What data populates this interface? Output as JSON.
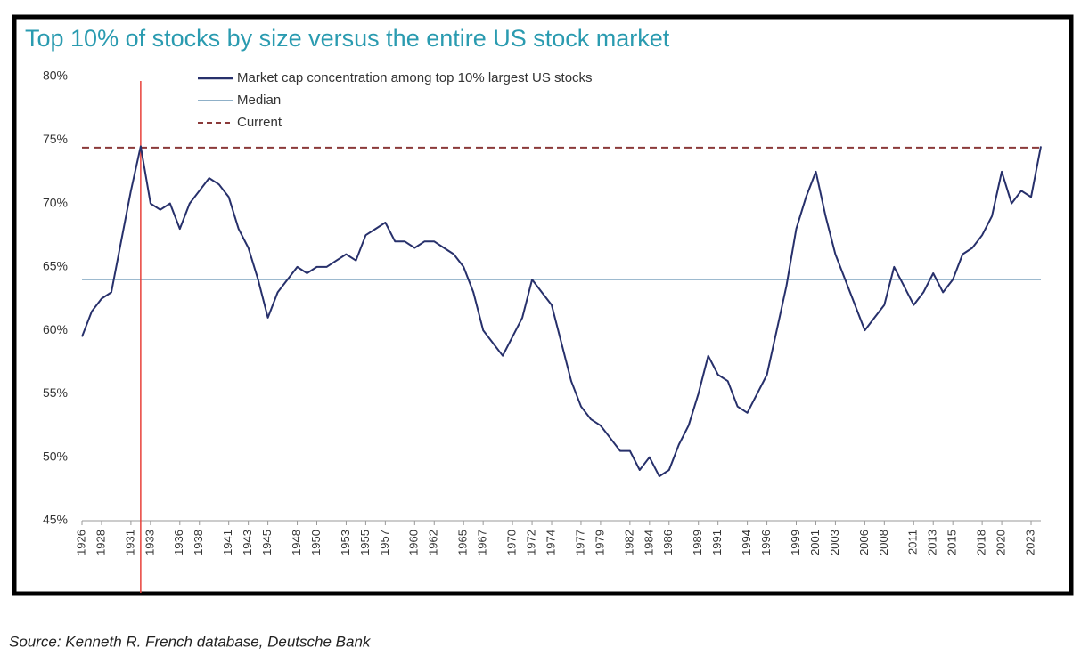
{
  "chart_data": {
    "type": "line",
    "title": "Top 10% of stocks by size versus the entire US stock market",
    "source": "Source: Kenneth R. French database, Deutsche Bank",
    "x": [
      1926,
      1927,
      1928,
      1929,
      1930,
      1931,
      1932,
      1933,
      1934,
      1935,
      1936,
      1937,
      1938,
      1939,
      1940,
      1941,
      1942,
      1943,
      1944,
      1945,
      1946,
      1947,
      1948,
      1949,
      1950,
      1951,
      1952,
      1953,
      1954,
      1955,
      1956,
      1957,
      1958,
      1959,
      1960,
      1961,
      1962,
      1963,
      1964,
      1965,
      1966,
      1967,
      1968,
      1969,
      1970,
      1971,
      1972,
      1973,
      1974,
      1975,
      1976,
      1977,
      1978,
      1979,
      1980,
      1981,
      1982,
      1983,
      1984,
      1985,
      1986,
      1987,
      1988,
      1989,
      1990,
      1991,
      1992,
      1993,
      1994,
      1995,
      1996,
      1997,
      1998,
      1999,
      2000,
      2001,
      2002,
      2003,
      2004,
      2005,
      2006,
      2007,
      2008,
      2009,
      2010,
      2011,
      2012,
      2013,
      2014,
      2015,
      2016,
      2017,
      2018,
      2019,
      2020,
      2021,
      2022,
      2023,
      2024
    ],
    "series": [
      {
        "name": "Market cap concentration among top 10% largest US stocks",
        "color": "#27306b",
        "values": [
          59.5,
          61.5,
          62.5,
          63,
          67,
          71,
          74.5,
          70,
          69.5,
          70,
          68,
          70,
          71,
          72,
          71.5,
          70.5,
          68,
          66.5,
          64,
          61,
          63,
          64,
          65,
          64.5,
          65,
          65,
          65.5,
          66,
          65.5,
          67.5,
          68,
          68.5,
          67,
          67,
          66.5,
          67,
          67,
          66.5,
          66,
          65,
          63,
          60,
          59,
          58,
          59.5,
          61,
          64,
          63,
          62,
          59,
          56,
          54,
          53,
          52.5,
          51.5,
          50.5,
          50.5,
          49,
          50,
          48.5,
          49,
          51,
          52.5,
          55,
          58,
          56.5,
          56,
          54,
          53.5,
          55,
          56.5,
          60,
          63.5,
          68,
          70.5,
          72.5,
          69,
          66,
          64,
          62,
          60,
          61,
          62,
          65,
          63.5,
          62,
          63,
          64.5,
          63,
          64,
          66,
          66.5,
          67.5,
          69,
          72.5,
          70,
          71,
          70.5,
          74.5
        ]
      }
    ],
    "reference_lines": [
      {
        "name": "Median",
        "value": 64,
        "color": "#8fb0c8",
        "style": "solid"
      },
      {
        "name": "Current",
        "value": 74.4,
        "color": "#8b3a3a",
        "style": "dashed"
      }
    ],
    "highlight_x": 1932,
    "highlight_color": "#e8413a",
    "xlim": [
      1926,
      2024
    ],
    "ylim": [
      45,
      80
    ],
    "yticks": [
      {
        "value": 45,
        "label": "45%"
      },
      {
        "value": 50,
        "label": "50%"
      },
      {
        "value": 55,
        "label": "55%"
      },
      {
        "value": 60,
        "label": "60%"
      },
      {
        "value": 65,
        "label": "65%"
      },
      {
        "value": 70,
        "label": "70%"
      },
      {
        "value": 75,
        "label": "75%"
      },
      {
        "value": 80,
        "label": "80%"
      }
    ],
    "xticks": [
      1926,
      1928,
      1931,
      1933,
      1936,
      1938,
      1941,
      1943,
      1945,
      1948,
      1950,
      1953,
      1955,
      1957,
      1960,
      1962,
      1965,
      1967,
      1970,
      1972,
      1974,
      1977,
      1979,
      1982,
      1984,
      1986,
      1989,
      1991,
      1994,
      1996,
      1999,
      2001,
      2003,
      2006,
      2008,
      2011,
      2013,
      2015,
      2018,
      2020,
      2023
    ],
    "grid": false
  }
}
